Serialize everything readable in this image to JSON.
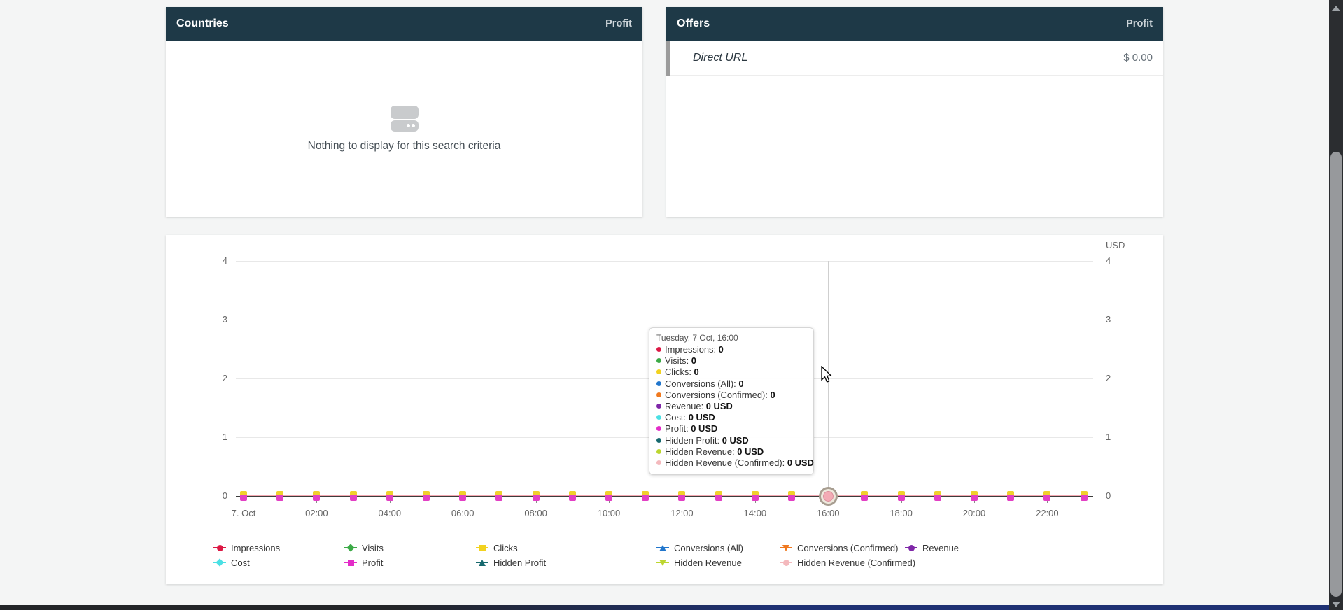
{
  "panels": {
    "countries": {
      "title": "Countries",
      "metric_column": "Profit",
      "empty_state": {
        "icon": "database-icon",
        "text": "Nothing to display for this search criteria"
      }
    },
    "offers": {
      "title": "Offers",
      "metric_column": "Profit",
      "rows": [
        {
          "label": "Direct URL",
          "value": "$ 0.00"
        }
      ]
    }
  },
  "chart_data": {
    "type": "line",
    "title": "",
    "unit_label": "USD",
    "xlabel": "",
    "ylabel": "",
    "ylim": [
      0,
      4
    ],
    "y_ticks": [
      0,
      1,
      2,
      3,
      4
    ],
    "grid": true,
    "legend_position": "bottom",
    "x": [
      "00:00",
      "01:00",
      "02:00",
      "03:00",
      "04:00",
      "05:00",
      "06:00",
      "07:00",
      "08:00",
      "09:00",
      "10:00",
      "11:00",
      "12:00",
      "13:00",
      "14:00",
      "15:00",
      "16:00",
      "17:00",
      "18:00",
      "19:00",
      "20:00",
      "21:00",
      "22:00",
      "23:00"
    ],
    "x_tick_labels": [
      "7. Oct",
      "02:00",
      "04:00",
      "06:00",
      "08:00",
      "10:00",
      "12:00",
      "14:00",
      "16:00",
      "18:00",
      "20:00",
      "22:00"
    ],
    "hover_index": 16,
    "series": [
      {
        "name": "Impressions",
        "color": "#dc1844",
        "marker": "circle",
        "values": [
          0,
          0,
          0,
          0,
          0,
          0,
          0,
          0,
          0,
          0,
          0,
          0,
          0,
          0,
          0,
          0,
          0,
          0,
          0,
          0,
          0,
          0,
          0,
          0
        ]
      },
      {
        "name": "Visits",
        "color": "#3caa47",
        "marker": "diamond",
        "values": [
          0,
          0,
          0,
          0,
          0,
          0,
          0,
          0,
          0,
          0,
          0,
          0,
          0,
          0,
          0,
          0,
          0,
          0,
          0,
          0,
          0,
          0,
          0,
          0
        ]
      },
      {
        "name": "Clicks",
        "color": "#f2d21f",
        "marker": "square",
        "values": [
          0,
          0,
          0,
          0,
          0,
          0,
          0,
          0,
          0,
          0,
          0,
          0,
          0,
          0,
          0,
          0,
          0,
          0,
          0,
          0,
          0,
          0,
          0,
          0
        ]
      },
      {
        "name": "Conversions (All)",
        "color": "#2176cc",
        "marker": "triangle",
        "values": [
          0,
          0,
          0,
          0,
          0,
          0,
          0,
          0,
          0,
          0,
          0,
          0,
          0,
          0,
          0,
          0,
          0,
          0,
          0,
          0,
          0,
          0,
          0,
          0
        ]
      },
      {
        "name": "Conversions (Confirmed)",
        "color": "#f0791f",
        "marker": "triangle-down",
        "values": [
          0,
          0,
          0,
          0,
          0,
          0,
          0,
          0,
          0,
          0,
          0,
          0,
          0,
          0,
          0,
          0,
          0,
          0,
          0,
          0,
          0,
          0,
          0,
          0
        ]
      },
      {
        "name": "Revenue",
        "color": "#7f27a8",
        "marker": "circle",
        "values": [
          0,
          0,
          0,
          0,
          0,
          0,
          0,
          0,
          0,
          0,
          0,
          0,
          0,
          0,
          0,
          0,
          0,
          0,
          0,
          0,
          0,
          0,
          0,
          0
        ]
      },
      {
        "name": "Cost",
        "color": "#4ae0e4",
        "marker": "diamond",
        "values": [
          0,
          0,
          0,
          0,
          0,
          0,
          0,
          0,
          0,
          0,
          0,
          0,
          0,
          0,
          0,
          0,
          0,
          0,
          0,
          0,
          0,
          0,
          0,
          0
        ]
      },
      {
        "name": "Profit",
        "color": "#e32cc8",
        "marker": "square",
        "values": [
          0,
          0,
          0,
          0,
          0,
          0,
          0,
          0,
          0,
          0,
          0,
          0,
          0,
          0,
          0,
          0,
          0,
          0,
          0,
          0,
          0,
          0,
          0,
          0
        ]
      },
      {
        "name": "Hidden Profit",
        "color": "#17696e",
        "marker": "triangle",
        "values": [
          0,
          0,
          0,
          0,
          0,
          0,
          0,
          0,
          0,
          0,
          0,
          0,
          0,
          0,
          0,
          0,
          0,
          0,
          0,
          0,
          0,
          0,
          0,
          0
        ]
      },
      {
        "name": "Hidden Revenue",
        "color": "#bcd62f",
        "marker": "triangle-down",
        "values": [
          0,
          0,
          0,
          0,
          0,
          0,
          0,
          0,
          0,
          0,
          0,
          0,
          0,
          0,
          0,
          0,
          0,
          0,
          0,
          0,
          0,
          0,
          0,
          0
        ]
      },
      {
        "name": "Hidden Revenue (Confirmed)",
        "color": "#f4b9bd",
        "marker": "circle",
        "values": [
          0,
          0,
          0,
          0,
          0,
          0,
          0,
          0,
          0,
          0,
          0,
          0,
          0,
          0,
          0,
          0,
          0,
          0,
          0,
          0,
          0,
          0,
          0,
          0
        ]
      }
    ]
  },
  "tooltip": {
    "title": "Tuesday, 7 Oct, 16:00",
    "items": [
      {
        "label": "Impressions",
        "value": "0"
      },
      {
        "label": "Visits",
        "value": "0"
      },
      {
        "label": "Clicks",
        "value": "0"
      },
      {
        "label": "Conversions (All)",
        "value": "0"
      },
      {
        "label": "Conversions (Confirmed)",
        "value": "0"
      },
      {
        "label": "Revenue",
        "value": "0 USD"
      },
      {
        "label": "Cost",
        "value": "0 USD"
      },
      {
        "label": "Profit",
        "value": "0 USD"
      },
      {
        "label": "Hidden Profit",
        "value": "0 USD"
      },
      {
        "label": "Hidden Revenue",
        "value": "0 USD"
      },
      {
        "label": "Hidden Revenue (Confirmed)",
        "value": "0 USD"
      }
    ]
  }
}
